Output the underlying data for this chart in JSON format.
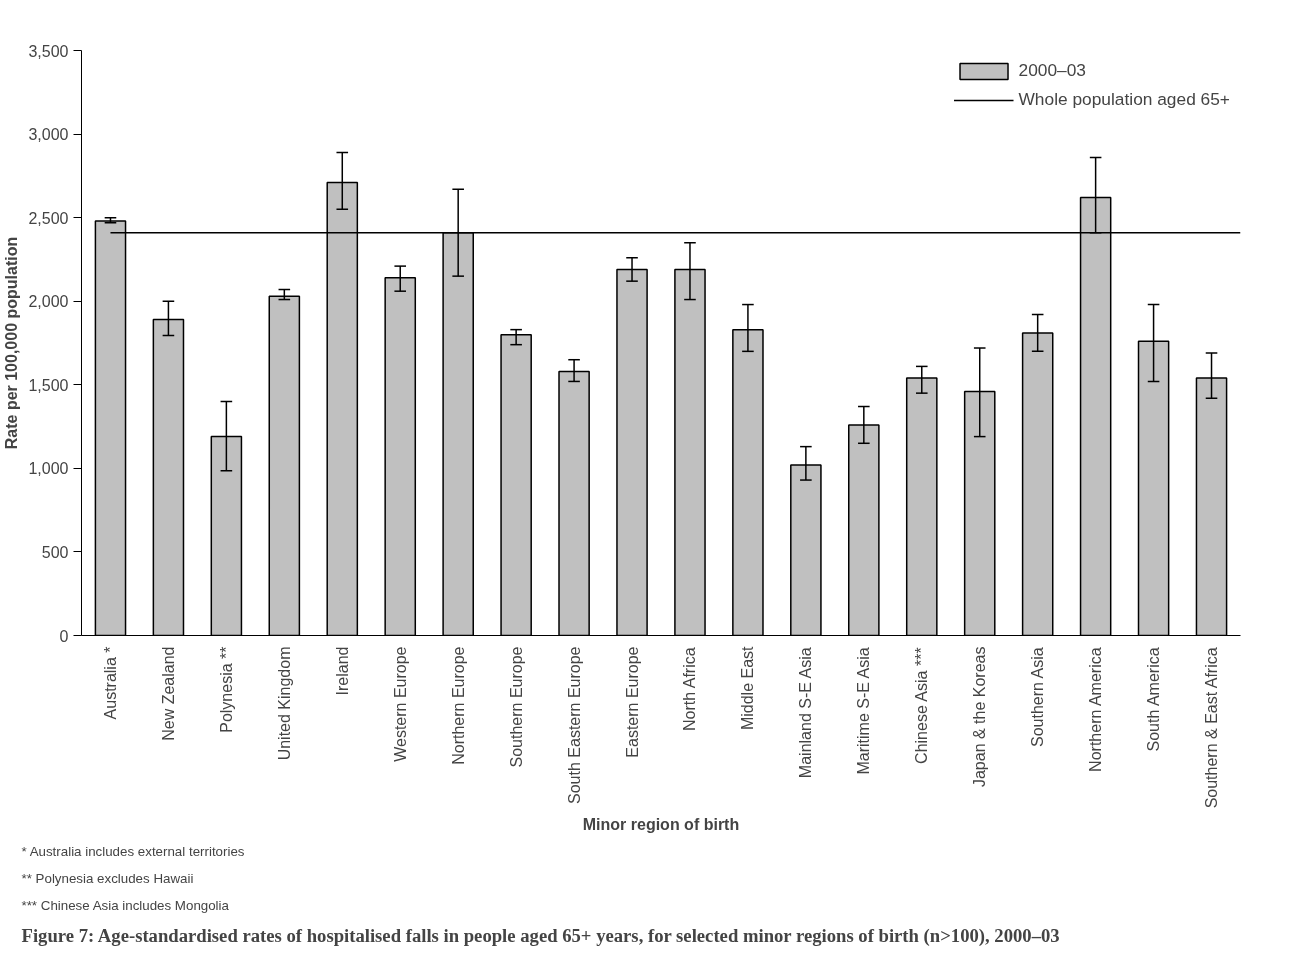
{
  "chart_data": {
    "type": "bar",
    "title": "Figure 7: Age-standardised rates of hospitalised falls in people aged 65+ years, for selected minor regions of birth (n>100), 2000–03",
    "xlabel": "Minor region of birth",
    "ylabel": "Rate per 100,000 population",
    "categories": [
      "Australia *",
      "New Zealand",
      "Polynesia **",
      "United Kingdom",
      "Ireland",
      "Western Europe",
      "Northern Europe",
      "Southern Europe",
      "South Eastern Europe",
      "Eastern Europe",
      "North Africa",
      "Middle East",
      "Mainland S-E Asia",
      "Maritime S-E Asia",
      "Chinese Asia ***",
      "Japan & the Koreas",
      "Southern Asia",
      "Northern America",
      "South America",
      "Southern & East Africa"
    ],
    "series": [
      {
        "name": "2000–03",
        "color": "#c0c0c0",
        "values": [
          2480,
          1890,
          1190,
          2030,
          2710,
          2140,
          2410,
          1800,
          1580,
          2190,
          2190,
          1830,
          1020,
          1260,
          1540,
          1460,
          1810,
          2620,
          1760,
          1540
        ],
        "errors": [
          [
            2470,
            2500
          ],
          [
            1795,
            2000
          ],
          [
            985,
            1400
          ],
          [
            2010,
            2070
          ],
          [
            2550,
            2890
          ],
          [
            2060,
            2210
          ],
          [
            2150,
            2670
          ],
          [
            1740,
            1830
          ],
          [
            1520,
            1650
          ],
          [
            2120,
            2260
          ],
          [
            2010,
            2350
          ],
          [
            1700,
            1980
          ],
          [
            930,
            1130
          ],
          [
            1150,
            1370
          ],
          [
            1450,
            1610
          ],
          [
            1190,
            1720
          ],
          [
            1700,
            1920
          ],
          [
            2410,
            2860
          ],
          [
            1520,
            1980
          ],
          [
            1420,
            1690
          ]
        ]
      }
    ],
    "ylim": [
      0,
      3500
    ],
    "yticks": [
      0,
      {
        "value": 500,
        "label": "500"
      },
      {
        "value": 1000,
        "label": "1,000"
      },
      {
        "value": 1500,
        "label": "1,500"
      },
      {
        "value": 2000,
        "label": "2,000"
      },
      {
        "value": 2500,
        "label": "2,500"
      },
      {
        "value": 3000,
        "label": "3,000"
      },
      {
        "value": 3500,
        "label": "3,500"
      }
    ],
    "ref_lines": [
      {
        "axis": "y",
        "value": 2410,
        "label": "Whole population aged 65+",
        "color": "#000000"
      }
    ],
    "grid": false,
    "legend": "top right",
    "annotations": [
      "* Australia includes external territories",
      "** Polynesia excludes Hawaii",
      "*** Chinese Asia includes Mongolia"
    ]
  }
}
